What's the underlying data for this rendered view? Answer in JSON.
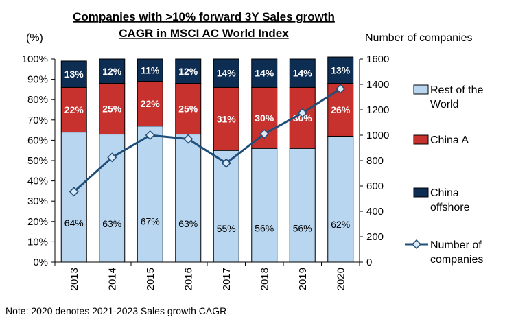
{
  "chart_data": {
    "type": "bar",
    "stacked": true,
    "title_lines": [
      "Companies with >10% forward 3Y Sales growth",
      "CAGR in MSCI AC World Index"
    ],
    "ylabel_left": "(%)",
    "ylabel_right": "Number of companies",
    "categories": [
      "2013",
      "2014",
      "2015",
      "2016",
      "2017",
      "2018",
      "2019",
      "2020"
    ],
    "ylim_left": [
      0,
      100
    ],
    "ylim_right": [
      0,
      1600
    ],
    "left_ticks": [
      "0%",
      "10%",
      "20%",
      "30%",
      "40%",
      "50%",
      "60%",
      "70%",
      "80%",
      "90%",
      "100%"
    ],
    "right_ticks": [
      "0",
      "200",
      "400",
      "600",
      "800",
      "1000",
      "1200",
      "1400",
      "1600"
    ],
    "series": [
      {
        "name": "Rest of the World",
        "legend_lines": [
          "Rest of the",
          "World"
        ],
        "axis": "left",
        "color": "#b8d6f0",
        "values": [
          64,
          63,
          67,
          63,
          55,
          56,
          56,
          62
        ],
        "labels": [
          "64%",
          "63%",
          "67%",
          "63%",
          "55%",
          "56%",
          "56%",
          "62%"
        ]
      },
      {
        "name": "China A",
        "legend_lines": [
          "China A"
        ],
        "axis": "left",
        "color": "#c8322e",
        "values": [
          22,
          25,
          22,
          25,
          31,
          30,
          30,
          26
        ],
        "labels": [
          "22%",
          "25%",
          "22%",
          "25%",
          "31%",
          "30%",
          "30%",
          "26%"
        ]
      },
      {
        "name": "China offshore",
        "legend_lines": [
          "China",
          "offshore"
        ],
        "axis": "left",
        "color": "#0d2d52",
        "values": [
          13,
          12,
          11,
          12,
          14,
          14,
          14,
          13
        ],
        "labels": [
          "13%",
          "12%",
          "11%",
          "12%",
          "14%",
          "14%",
          "14%",
          "13%"
        ]
      },
      {
        "name": "Number of companies",
        "legend_lines": [
          "Number of",
          "companies"
        ],
        "axis": "right",
        "type": "line",
        "color": "#1f4e79",
        "marker": "diamond",
        "values": [
          555,
          825,
          1000,
          970,
          780,
          1010,
          1175,
          1365
        ]
      }
    ],
    "legend_position": "right",
    "grid": false,
    "note": "Note: 2020 denotes 2021-2023 Sales growth CAGR"
  }
}
